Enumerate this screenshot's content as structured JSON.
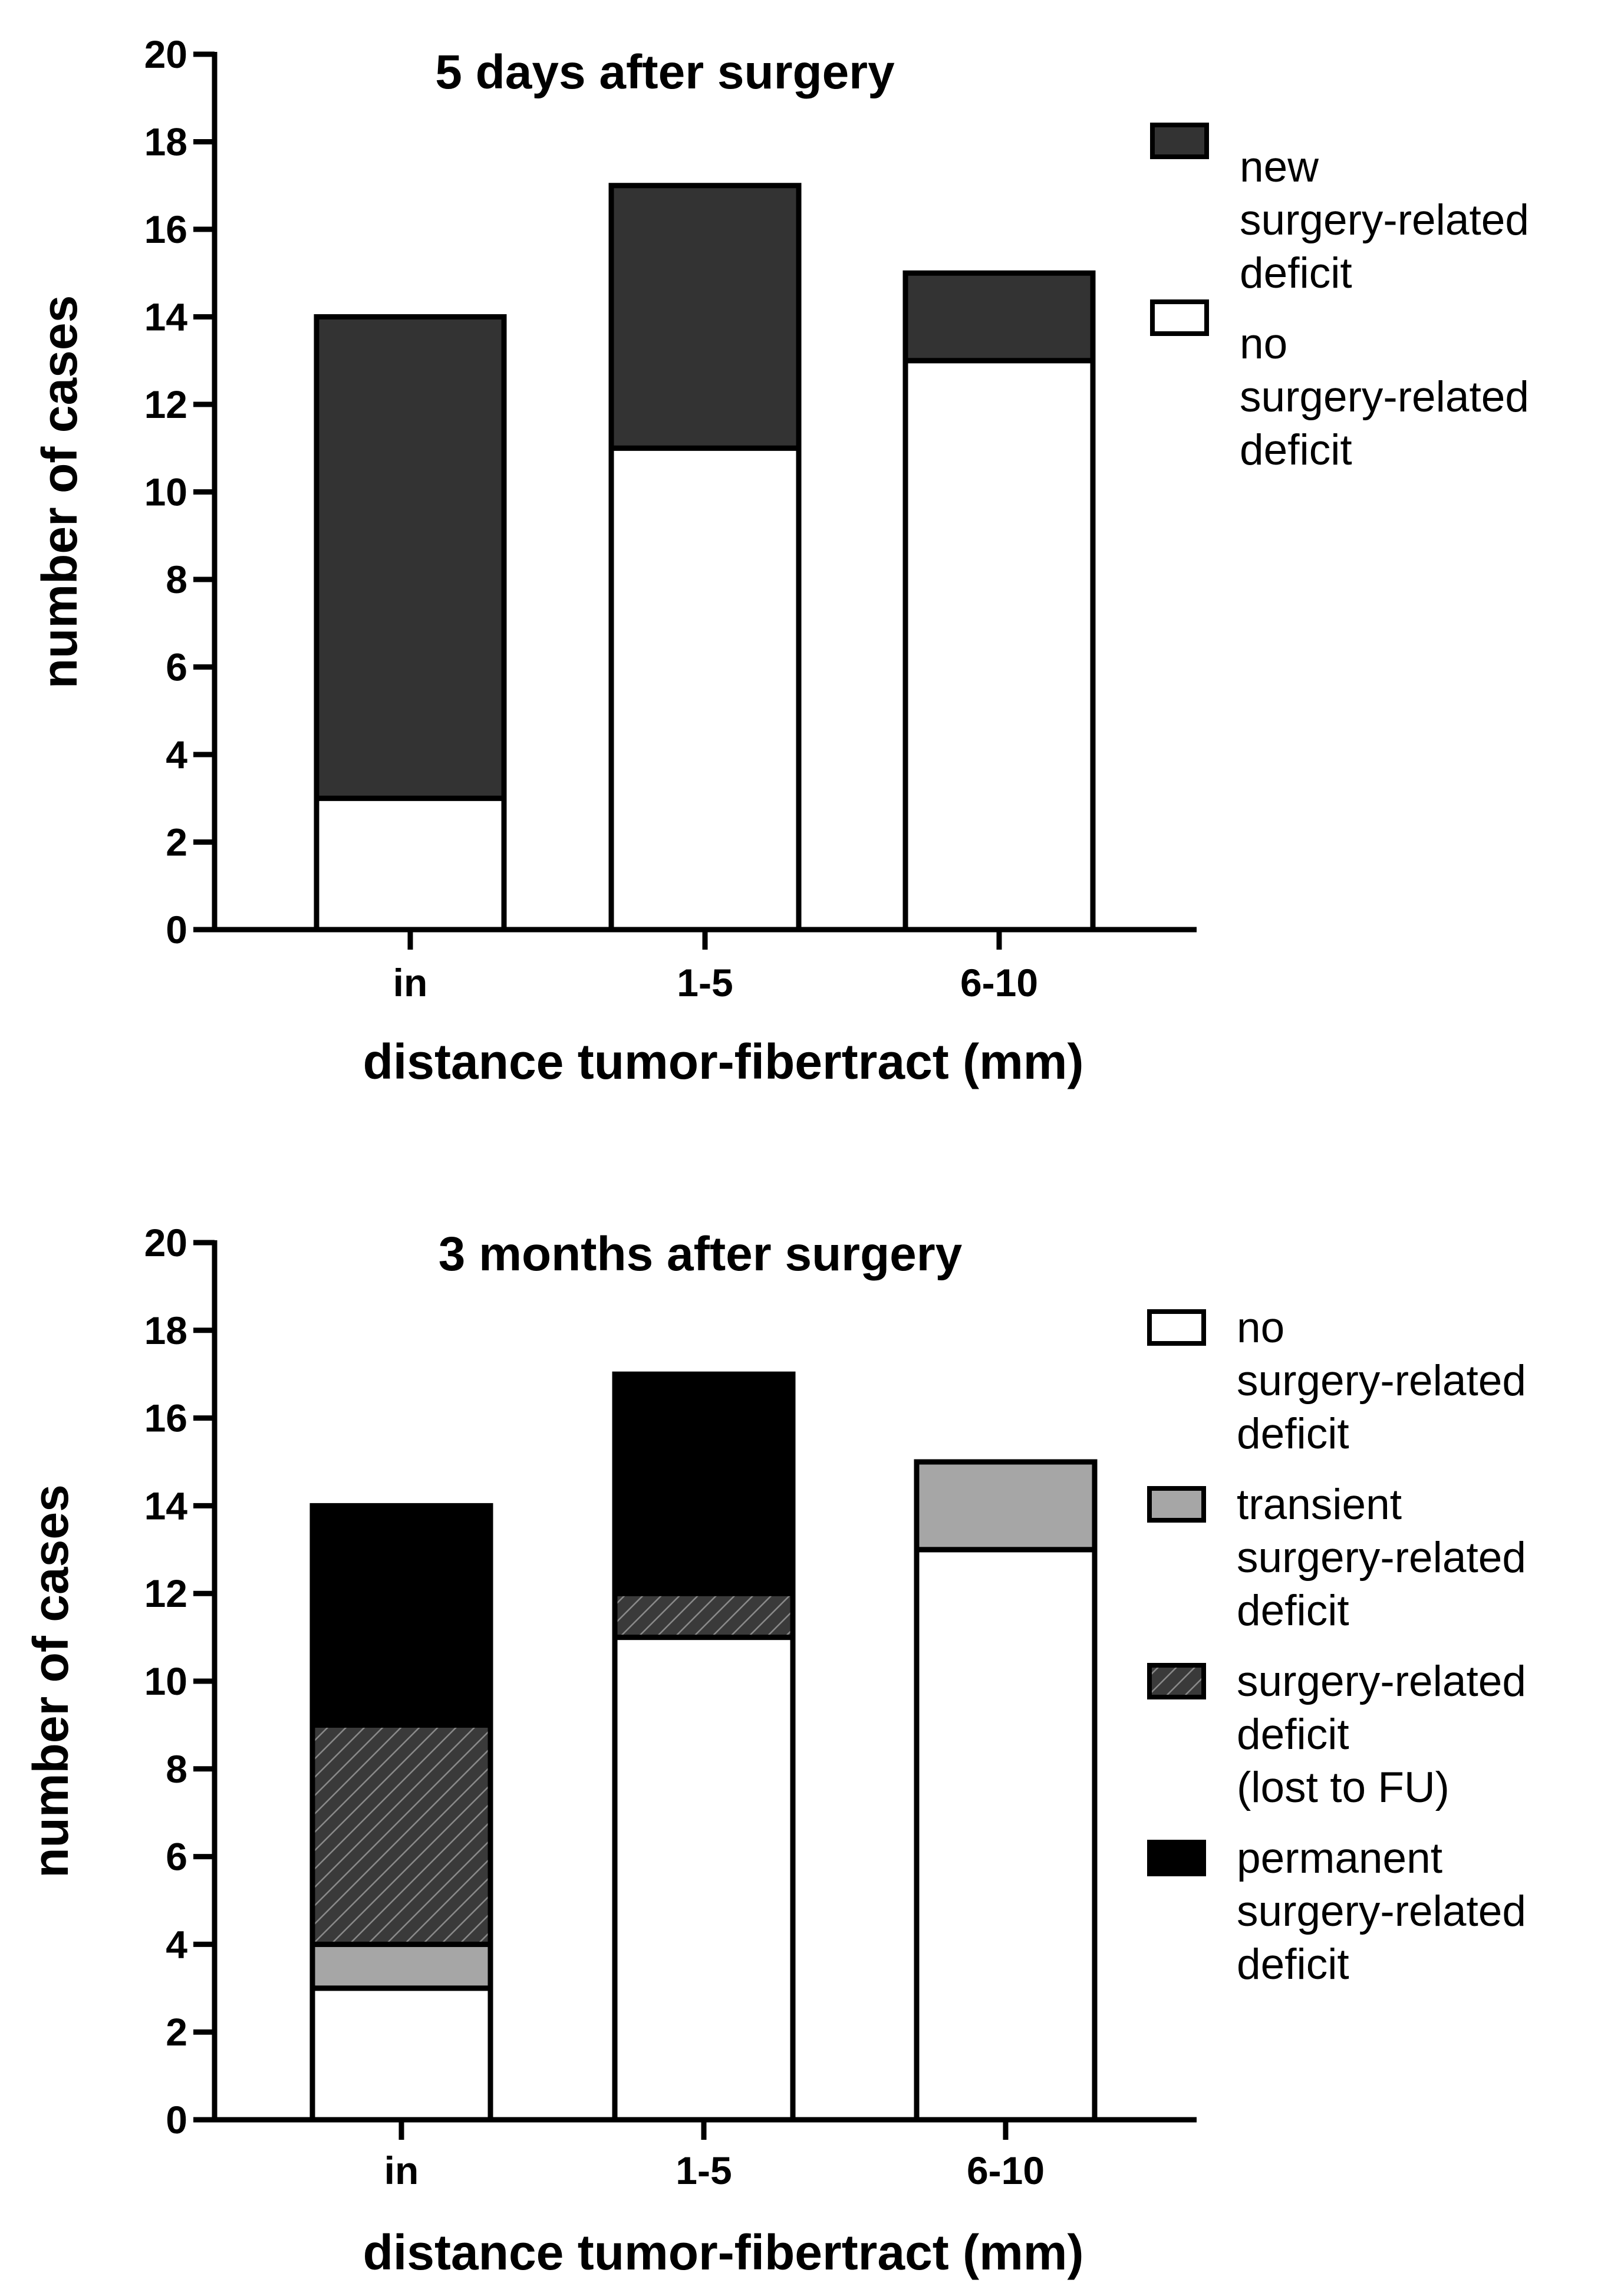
{
  "chart_data": [
    {
      "type": "bar",
      "stacked": true,
      "title": "5 days after surgery",
      "xlabel": "distance tumor-fibertract (mm)",
      "ylabel": "number of cases",
      "ylim": [
        0,
        20
      ],
      "yticks": [
        "0",
        "2",
        "4",
        "6",
        "8",
        "10",
        "12",
        "14",
        "16",
        "18",
        "20"
      ],
      "categories": [
        "in",
        "1-5",
        "6-10"
      ],
      "series": [
        {
          "name": "no surgery-related deficit",
          "values": [
            3,
            11,
            13
          ],
          "color": "#ffffff",
          "pattern": "none"
        },
        {
          "name": "new surgery-related deficit",
          "values": [
            11,
            6,
            2
          ],
          "color": "#333333",
          "pattern": "none"
        }
      ],
      "legend": {
        "placement": "right",
        "items": [
          {
            "lines": [
              "new",
              "surgery-related",
              "deficit"
            ],
            "color": "#333333",
            "pattern": "none"
          },
          {
            "lines": [
              "no",
              "surgery-related",
              "deficit"
            ],
            "color": "#ffffff",
            "pattern": "none"
          }
        ]
      }
    },
    {
      "type": "bar",
      "stacked": true,
      "title": "3 months after surgery",
      "xlabel": "distance tumor-fibertract (mm)",
      "ylabel": "number of cases",
      "ylim": [
        0,
        20
      ],
      "yticks": [
        "0",
        "2",
        "4",
        "6",
        "8",
        "10",
        "12",
        "14",
        "16",
        "18",
        "20"
      ],
      "categories": [
        "in",
        "1-5",
        "6-10"
      ],
      "series": [
        {
          "name": "no surgery-related deficit",
          "values": [
            3,
            11,
            13
          ],
          "color": "#ffffff",
          "pattern": "none"
        },
        {
          "name": "transient surgery-related deficit",
          "values": [
            1,
            0,
            2
          ],
          "color": "#a6a6a6",
          "pattern": "none"
        },
        {
          "name": "surgery-related deficit (lost to FU)",
          "values": [
            5,
            1,
            0
          ],
          "color": "#3a3a3a",
          "pattern": "hatch"
        },
        {
          "name": "permanent surgery-related deficit",
          "values": [
            5,
            5,
            0
          ],
          "color": "#000000",
          "pattern": "none"
        }
      ],
      "legend": {
        "placement": "right",
        "items": [
          {
            "lines": [
              "no",
              "surgery-related",
              "deficit"
            ],
            "color": "#ffffff",
            "pattern": "none"
          },
          {
            "lines": [
              "transient",
              "surgery-related",
              "deficit"
            ],
            "color": "#a6a6a6",
            "pattern": "none"
          },
          {
            "lines": [
              "surgery-related",
              "deficit",
              "(lost to FU)"
            ],
            "color": "#3a3a3a",
            "pattern": "hatch"
          },
          {
            "lines": [
              "permanent",
              "surgery-related",
              "deficit"
            ],
            "color": "#000000",
            "pattern": "none"
          }
        ]
      }
    }
  ]
}
